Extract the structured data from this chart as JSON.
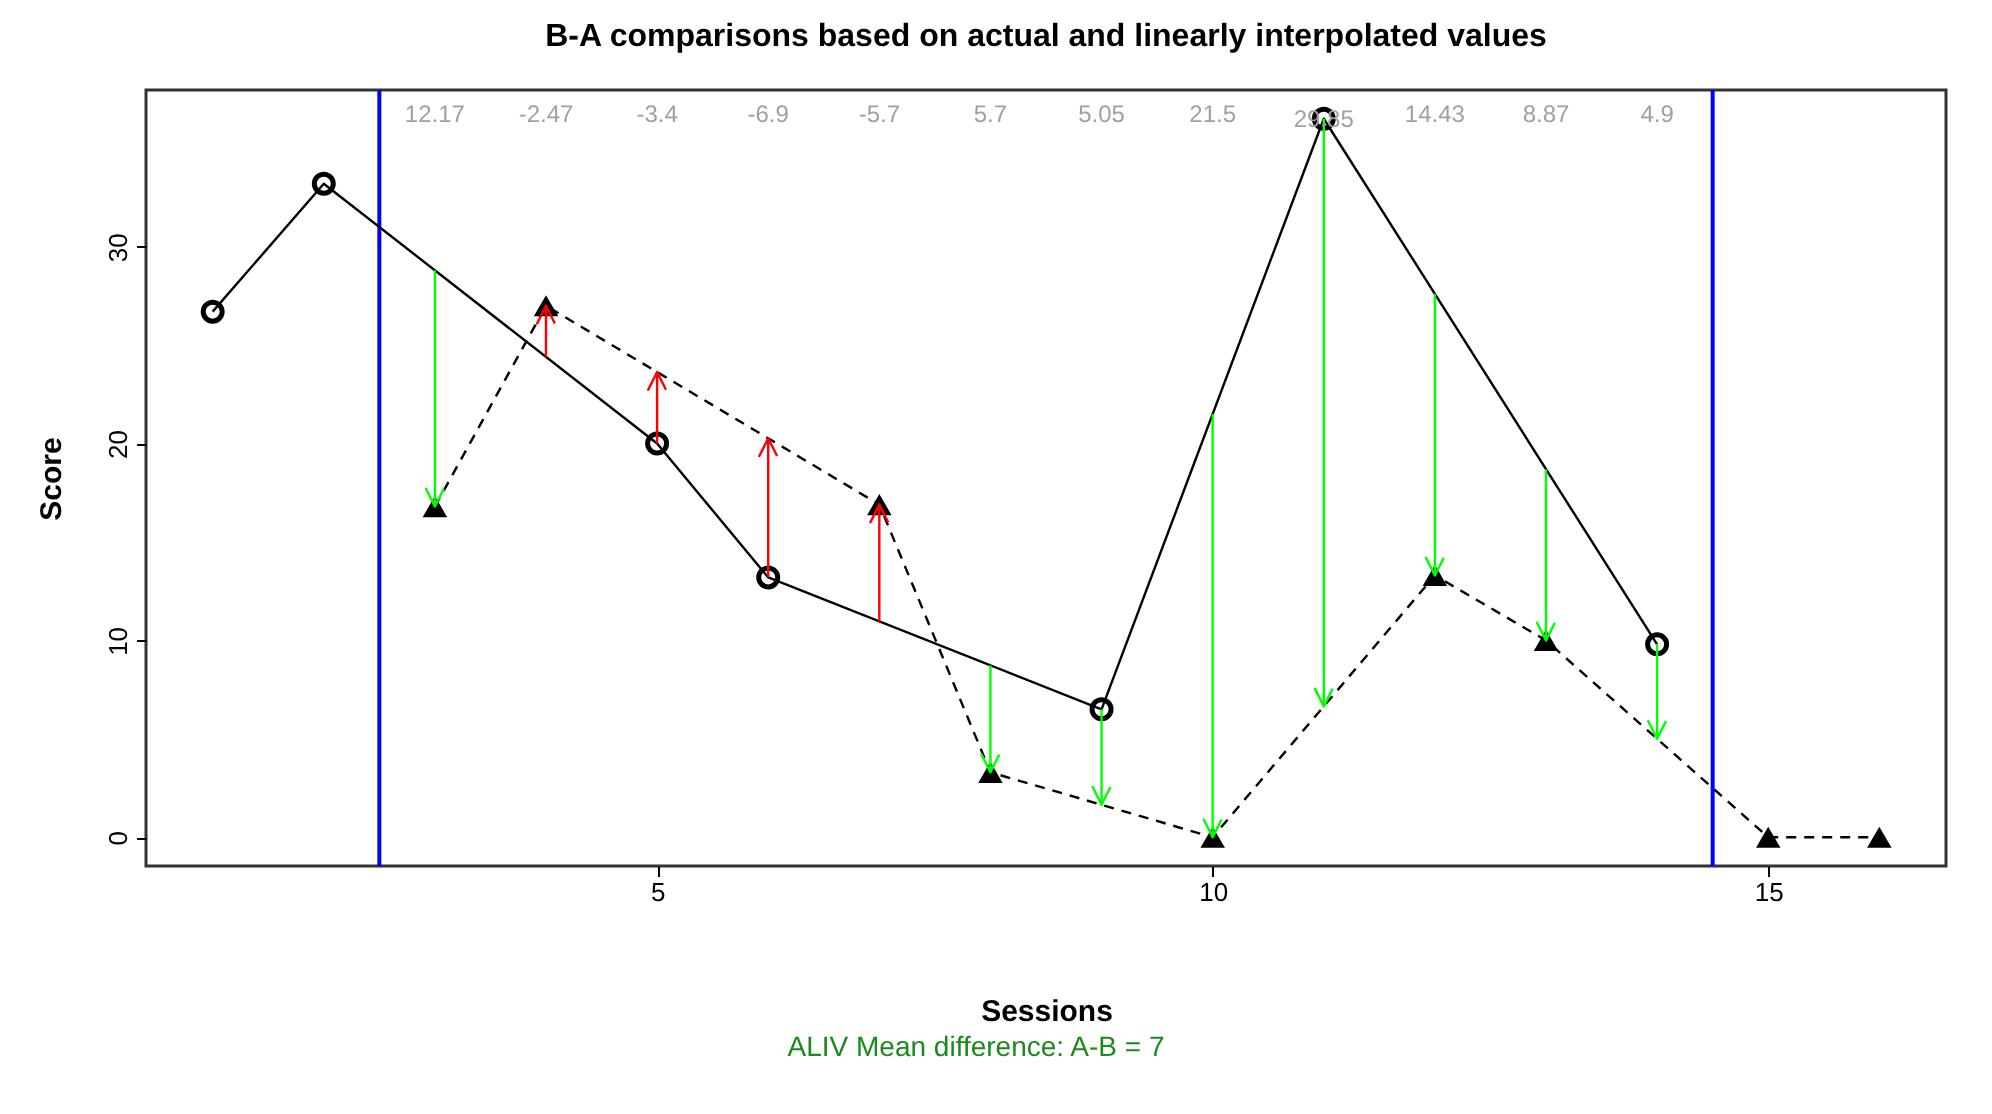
{
  "chart_data": {
    "type": "line",
    "title": "B-A comparisons based on actual and linearly interpolated values",
    "xlabel": "Sessions",
    "ylabel": "Score",
    "xlim": [
      0.4,
      16.6
    ],
    "ylim": [
      -1.46,
      37.96
    ],
    "xticks": [
      5,
      10,
      15
    ],
    "yticks": [
      0,
      10,
      20,
      30
    ],
    "series": [
      {
        "x": [
          1,
          2,
          5,
          6,
          9,
          11,
          14
        ],
        "values": [
          26.7,
          33.2,
          20.0,
          13.2,
          6.5,
          36.5,
          9.8
        ],
        "color": "#000000",
        "marker": "circle",
        "line_style": "solid"
      },
      {
        "x": [
          3,
          4,
          7,
          8,
          10,
          12,
          13,
          15,
          16
        ],
        "values": [
          16.8,
          27.0,
          16.9,
          3.3,
          0,
          13.3,
          10.0,
          0,
          0
        ],
        "color": "#000000",
        "marker": "triangle",
        "line_style": "dashed"
      }
    ],
    "ref_lines": [
      {
        "axis": "x",
        "value": 2.5,
        "color": "#0000ff"
      },
      {
        "axis": "x",
        "value": 14.5,
        "color": "#0000ff"
      }
    ],
    "annotations": [
      "12.17",
      "-2.47",
      "-3.4",
      "-6.9",
      "-5.7",
      "5.7",
      "5.05",
      "21.5",
      {
        "text": "29.85",
        "x": 11,
        "y": 36.5
      },
      "14.43",
      "8.87",
      "4.9",
      "ALIV Mean difference: A-B =  7"
    ]
  }
}
